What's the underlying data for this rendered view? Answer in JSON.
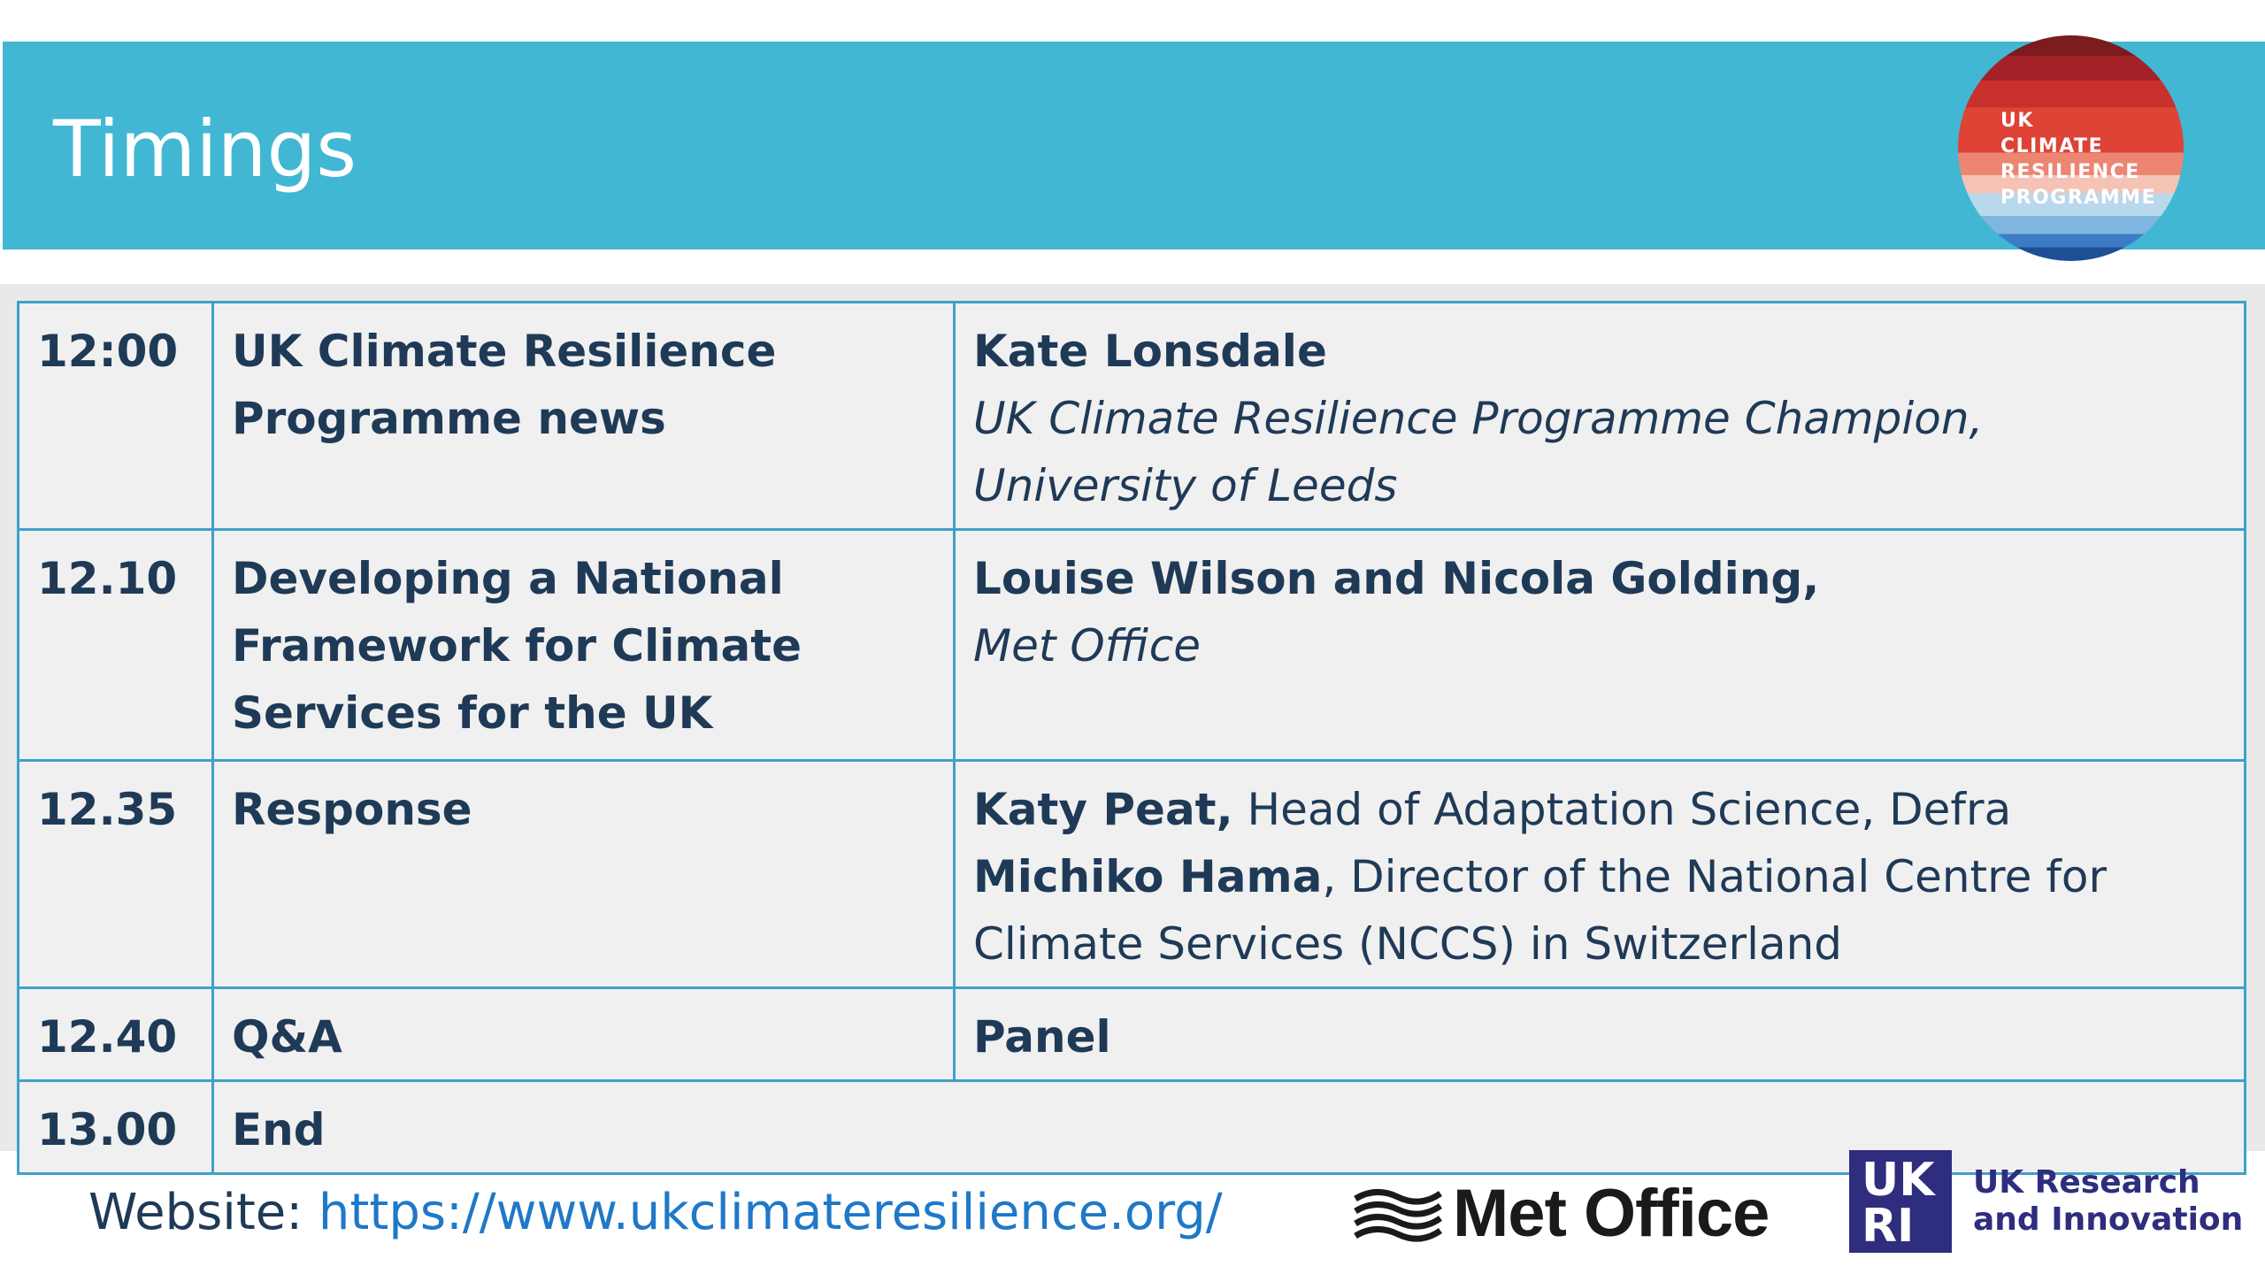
{
  "header": {
    "title": "Timings",
    "programme_logo_text": "UK\nCLIMATE\nRESILIENCE\nPROGRAMME"
  },
  "agenda": [
    {
      "time": "12:00",
      "session_lines": [
        "UK Climate Resilience",
        "Programme news"
      ],
      "speaker_name": "Kate Lonsdale",
      "speaker_role_lines": [
        "UK Climate Resilience Programme Champion,",
        "University of Leeds"
      ]
    },
    {
      "time": "12.10",
      "session_lines": [
        "Developing a National",
        "Framework for Climate",
        "Services for the UK"
      ],
      "speaker_name": "Louise Wilson and Nicola Golding,",
      "speaker_role_lines": [
        "Met Office"
      ]
    },
    {
      "time": "12.35",
      "session_lines": [
        "Response"
      ],
      "speakers": [
        {
          "name": "Katy Peat,",
          "desc": " Head of Adaptation Science, Defra"
        },
        {
          "name": "Michiko Hama",
          "desc": ", Director of the National Centre for"
        },
        {
          "name": "",
          "desc": "Climate Services (NCCS) in Switzerland"
        }
      ]
    },
    {
      "time": "12.40",
      "session_lines": [
        "Q&A"
      ],
      "speaker_name": "Panel"
    },
    {
      "time": "13.00",
      "session_lines": [
        "End"
      ]
    }
  ],
  "footer": {
    "website_label": "Website: ",
    "website_url": "https://www.ukclimateresilience.org/",
    "metoffice_label": "Met Office",
    "ukri_label_line1": "UK Research",
    "ukri_label_line2": "and Innovation",
    "ukri_mark_top": "UK",
    "ukri_mark_bottom": "RI"
  },
  "colors": {
    "header_bar": "#41b7d3",
    "table_border": "#41a0c8",
    "text_dark": "#1f3a57",
    "link": "#1f78c8",
    "ukri_purple": "#2e2d7e"
  }
}
